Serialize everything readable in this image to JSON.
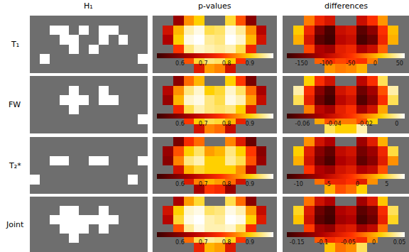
{
  "chart_data": {
    "type": "heatmap_grid",
    "tick_labels": false,
    "columns": [
      "H₁",
      "p-values",
      "differences"
    ],
    "rows": [
      {
        "label": "T₁",
        "h1": [
          [
            0,
            0,
            0,
            0,
            0,
            0,
            0,
            0,
            0,
            0,
            0,
            0
          ],
          [
            0,
            0,
            1,
            1,
            0,
            1,
            0,
            1,
            1,
            0,
            0,
            0
          ],
          [
            0,
            0,
            0,
            1,
            1,
            0,
            0,
            1,
            0,
            1,
            0,
            0
          ],
          [
            0,
            0,
            0,
            0,
            1,
            0,
            1,
            0,
            0,
            0,
            0,
            0
          ],
          [
            0,
            1,
            0,
            0,
            0,
            0,
            0,
            0,
            0,
            0,
            0,
            1
          ],
          [
            0,
            0,
            0,
            0,
            0,
            0,
            0,
            0,
            0,
            0,
            0,
            0
          ]
        ],
        "p_values": {
          "zlim": [
            0.5,
            1
          ],
          "ticks": [
            0.6,
            0.7,
            0.8,
            0.9
          ],
          "z": [
            [
              null,
              null,
              0.62,
              0.85,
              0.9,
              null,
              null,
              0.92,
              0.8,
              0.6,
              null,
              null
            ],
            [
              null,
              0.7,
              0.88,
              0.97,
              0.99,
              0.93,
              0.94,
              0.99,
              0.96,
              0.85,
              0.66,
              null
            ],
            [
              null,
              0.65,
              0.9,
              0.99,
              1.0,
              0.96,
              0.95,
              1.0,
              0.98,
              0.88,
              0.7,
              null
            ],
            [
              null,
              null,
              0.78,
              0.95,
              0.98,
              0.97,
              0.96,
              0.97,
              0.93,
              0.75,
              null,
              null
            ],
            [
              null,
              null,
              null,
              0.8,
              0.92,
              0.95,
              0.94,
              0.9,
              0.77,
              null,
              null,
              null
            ],
            [
              null,
              null,
              null,
              null,
              0.72,
              0.86,
              0.84,
              0.7,
              null,
              null,
              null,
              null
            ]
          ]
        },
        "differences": {
          "zlim": [
            -180,
            60
          ],
          "ticks": [
            -150,
            -100,
            -50,
            0,
            50
          ],
          "z": [
            [
              null,
              null,
              -20,
              -60,
              -80,
              null,
              null,
              -90,
              -50,
              -10,
              null,
              null
            ],
            [
              null,
              10,
              -60,
              -140,
              -170,
              -90,
              -80,
              -160,
              -130,
              -50,
              5,
              null
            ],
            [
              null,
              0,
              -80,
              -160,
              -175,
              -100,
              -90,
              -170,
              -150,
              -60,
              0,
              null
            ],
            [
              null,
              null,
              -40,
              -110,
              -120,
              -70,
              -60,
              -110,
              -90,
              -30,
              null,
              null
            ],
            [
              null,
              null,
              null,
              -30,
              -50,
              -40,
              -45,
              -50,
              -20,
              null,
              null,
              null
            ],
            [
              null,
              null,
              null,
              null,
              -10,
              -20,
              -15,
              0,
              null,
              null,
              null,
              null
            ]
          ]
        }
      },
      {
        "label": "FW",
        "h1": [
          [
            0,
            0,
            0,
            0,
            0,
            0,
            0,
            0,
            0,
            0,
            0,
            0
          ],
          [
            0,
            0,
            0,
            0,
            1,
            0,
            0,
            1,
            0,
            0,
            0,
            0
          ],
          [
            0,
            0,
            0,
            1,
            1,
            1,
            0,
            1,
            1,
            0,
            0,
            0
          ],
          [
            0,
            0,
            0,
            0,
            1,
            0,
            0,
            0,
            0,
            0,
            0,
            0
          ],
          [
            0,
            0,
            0,
            0,
            0,
            0,
            0,
            0,
            0,
            0,
            0,
            1
          ],
          [
            0,
            0,
            0,
            0,
            0,
            0,
            0,
            0,
            0,
            0,
            0,
            0
          ]
        ],
        "p_values": {
          "zlim": [
            0.5,
            1
          ],
          "ticks": [
            0.6,
            0.7,
            0.8,
            0.9
          ],
          "z": [
            [
              null,
              null,
              0.6,
              0.82,
              0.88,
              null,
              null,
              0.9,
              0.78,
              0.58,
              null,
              null
            ],
            [
              null,
              0.66,
              0.85,
              0.95,
              0.98,
              0.9,
              0.92,
              0.98,
              0.94,
              0.82,
              0.64,
              null
            ],
            [
              null,
              0.62,
              0.88,
              0.98,
              0.99,
              0.95,
              0.93,
              0.99,
              0.97,
              0.86,
              0.68,
              null
            ],
            [
              null,
              null,
              0.75,
              0.93,
              0.97,
              0.95,
              0.94,
              0.95,
              0.9,
              0.72,
              null,
              null
            ],
            [
              null,
              null,
              null,
              0.78,
              0.9,
              0.93,
              0.92,
              0.88,
              0.74,
              null,
              null,
              null
            ],
            [
              null,
              null,
              null,
              null,
              0.7,
              0.84,
              0.82,
              0.68,
              null,
              null,
              null,
              null
            ]
          ]
        },
        "differences": {
          "zlim": [
            -0.07,
            0.005
          ],
          "ticks": [
            -0.06,
            -0.04,
            -0.02,
            0
          ],
          "z": [
            [
              null,
              null,
              -0.01,
              -0.03,
              -0.04,
              null,
              null,
              -0.045,
              -0.03,
              -0.005,
              null,
              null
            ],
            [
              null,
              0,
              -0.03,
              -0.055,
              -0.065,
              -0.04,
              -0.035,
              -0.06,
              -0.05,
              -0.025,
              0,
              null
            ],
            [
              null,
              -0.005,
              -0.035,
              -0.06,
              -0.068,
              -0.045,
              -0.04,
              -0.065,
              -0.055,
              -0.03,
              -0.005,
              null
            ],
            [
              null,
              null,
              -0.02,
              -0.045,
              -0.05,
              -0.035,
              -0.03,
              -0.05,
              -0.04,
              -0.015,
              null,
              null
            ],
            [
              null,
              null,
              null,
              -0.015,
              -0.025,
              -0.02,
              -0.02,
              -0.025,
              -0.01,
              null,
              null,
              null
            ],
            [
              null,
              null,
              null,
              null,
              -0.005,
              -0.01,
              -0.01,
              0,
              null,
              null,
              null,
              null
            ]
          ]
        }
      },
      {
        "label": "T₂*",
        "h1": [
          [
            0,
            0,
            0,
            0,
            0,
            0,
            0,
            0,
            0,
            0,
            0,
            0
          ],
          [
            0,
            0,
            0,
            0,
            0,
            0,
            0,
            0,
            0,
            0,
            0,
            0
          ],
          [
            0,
            0,
            1,
            1,
            0,
            0,
            1,
            1,
            0,
            0,
            0,
            1
          ],
          [
            0,
            0,
            0,
            0,
            0,
            0,
            0,
            0,
            0,
            0,
            0,
            0
          ],
          [
            1,
            0,
            0,
            0,
            0,
            0,
            0,
            0,
            0,
            0,
            1,
            0
          ],
          [
            0,
            0,
            0,
            0,
            0,
            0,
            0,
            0,
            0,
            0,
            0,
            0
          ]
        ],
        "p_values": {
          "zlim": [
            0.5,
            1
          ],
          "ticks": [
            0.6,
            0.7,
            0.8,
            0.9
          ],
          "z": [
            [
              null,
              null,
              0.58,
              0.76,
              0.82,
              null,
              null,
              0.84,
              0.72,
              0.56,
              null,
              null
            ],
            [
              null,
              0.62,
              0.8,
              0.9,
              0.94,
              0.86,
              0.88,
              0.95,
              0.9,
              0.78,
              0.6,
              null
            ],
            [
              null,
              0.6,
              0.84,
              0.95,
              0.97,
              0.9,
              0.9,
              0.96,
              0.93,
              0.8,
              0.62,
              null
            ],
            [
              null,
              null,
              0.7,
              0.88,
              0.92,
              0.9,
              0.9,
              0.9,
              0.85,
              0.66,
              null,
              null
            ],
            [
              null,
              null,
              null,
              0.72,
              0.84,
              0.88,
              0.86,
              0.82,
              0.7,
              null,
              null,
              null
            ],
            [
              null,
              null,
              null,
              null,
              0.64,
              0.78,
              0.76,
              0.62,
              null,
              null,
              null,
              null
            ]
          ]
        },
        "differences": {
          "zlim": [
            -12,
            8
          ],
          "ticks": [
            -10,
            -5,
            0,
            5
          ],
          "z": [
            [
              null,
              null,
              2,
              -4,
              -6,
              null,
              null,
              -7,
              -3,
              3,
              null,
              null
            ],
            [
              null,
              4,
              -3,
              -8,
              -10,
              -5,
              -4,
              -9,
              -7,
              -2,
              5,
              null
            ],
            [
              null,
              3,
              -4,
              -9,
              -11,
              -6,
              -5,
              -10,
              -8,
              -3,
              2,
              null
            ],
            [
              null,
              null,
              -1,
              -6,
              -7,
              -4,
              -3,
              -6,
              -5,
              0,
              null,
              null
            ],
            [
              null,
              null,
              null,
              1,
              -2,
              -2,
              -1,
              -3,
              2,
              null,
              null,
              null
            ],
            [
              null,
              null,
              null,
              null,
              3,
              0,
              1,
              4,
              null,
              null,
              null,
              null
            ]
          ]
        }
      },
      {
        "label": "Joint",
        "h1": [
          [
            0,
            0,
            0,
            0,
            0,
            0,
            0,
            0,
            0,
            0,
            0,
            0
          ],
          [
            0,
            0,
            0,
            1,
            1,
            0,
            0,
            1,
            0,
            0,
            0,
            0
          ],
          [
            0,
            0,
            1,
            1,
            1,
            1,
            1,
            1,
            1,
            0,
            0,
            0
          ],
          [
            0,
            0,
            0,
            1,
            1,
            1,
            0,
            1,
            0,
            0,
            0,
            0
          ],
          [
            0,
            0,
            0,
            0,
            1,
            0,
            0,
            0,
            0,
            0,
            0,
            0
          ],
          [
            0,
            0,
            0,
            0,
            0,
            0,
            0,
            0,
            0,
            0,
            0,
            0
          ]
        ],
        "p_values": {
          "zlim": [
            0.5,
            1
          ],
          "ticks": [
            0.6,
            0.7,
            0.8,
            0.9
          ],
          "z": [
            [
              null,
              null,
              0.64,
              0.86,
              0.92,
              null,
              null,
              0.93,
              0.82,
              0.6,
              null,
              null
            ],
            [
              null,
              0.7,
              0.9,
              0.98,
              0.99,
              0.94,
              0.95,
              0.99,
              0.97,
              0.86,
              0.68,
              null
            ],
            [
              null,
              0.66,
              0.92,
              0.99,
              1.0,
              0.97,
              0.96,
              1.0,
              0.99,
              0.9,
              0.72,
              null
            ],
            [
              null,
              null,
              0.8,
              0.96,
              0.99,
              0.97,
              0.97,
              0.98,
              0.94,
              0.76,
              null,
              null
            ],
            [
              null,
              null,
              null,
              0.82,
              0.93,
              0.96,
              0.95,
              0.91,
              0.78,
              null,
              null,
              null
            ],
            [
              null,
              null,
              null,
              null,
              0.74,
              0.88,
              0.86,
              0.72,
              null,
              null,
              null,
              null
            ]
          ]
        },
        "differences": {
          "zlim": [
            -0.17,
            0.06
          ],
          "ticks": [
            -0.15,
            -0.1,
            -0.05,
            0,
            0.05
          ],
          "z": [
            [
              null,
              null,
              -0.02,
              -0.08,
              -0.1,
              null,
              null,
              -0.11,
              -0.07,
              0.01,
              null,
              null
            ],
            [
              null,
              0.02,
              -0.07,
              -0.14,
              -0.16,
              -0.1,
              -0.09,
              -0.15,
              -0.13,
              -0.05,
              0.03,
              null
            ],
            [
              null,
              0.01,
              -0.08,
              -0.15,
              -0.165,
              -0.11,
              -0.1,
              -0.16,
              -0.14,
              -0.06,
              0.02,
              null
            ],
            [
              null,
              null,
              -0.04,
              -0.11,
              -0.12,
              -0.08,
              -0.07,
              -0.11,
              -0.09,
              -0.02,
              null,
              null
            ],
            [
              null,
              null,
              null,
              -0.03,
              -0.05,
              -0.04,
              -0.04,
              -0.05,
              -0.01,
              null,
              null,
              null
            ],
            [
              null,
              null,
              null,
              null,
              0.01,
              -0.02,
              -0.01,
              0.03,
              null,
              null,
              null,
              null
            ]
          ]
        }
      }
    ]
  }
}
